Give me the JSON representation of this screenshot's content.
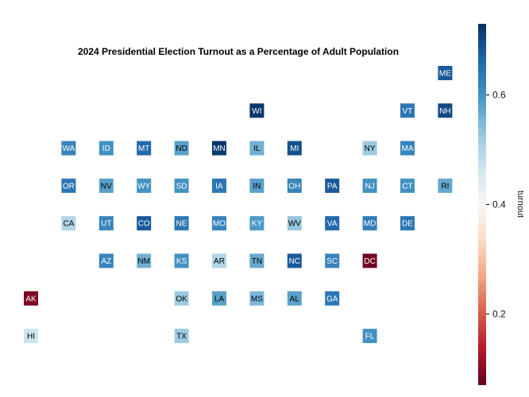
{
  "chart_data": {
    "type": "heatmap",
    "title": "2024 Presidential Election Turnout as a Percentage of Adult Population",
    "colorbar_label": "turnout",
    "colorbar_ticks": [
      0.2,
      0.4,
      0.6
    ],
    "colorbar_tick_labels": [
      "0.2",
      "0.4",
      "0.6"
    ],
    "colorscale": "RdBu",
    "color_range": [
      0.07,
      0.73
    ],
    "grid": false,
    "tiles": [
      {
        "state": "ME",
        "col": 11,
        "row": 0,
        "turnout": 0.68
      },
      {
        "state": "WI",
        "col": 6,
        "row": 1,
        "turnout": 0.72
      },
      {
        "state": "VT",
        "col": 10,
        "row": 1,
        "turnout": 0.64
      },
      {
        "state": "NH",
        "col": 11,
        "row": 1,
        "turnout": 0.7
      },
      {
        "state": "WA",
        "col": 1,
        "row": 2,
        "turnout": 0.62
      },
      {
        "state": "ID",
        "col": 2,
        "row": 2,
        "turnout": 0.6
      },
      {
        "state": "MT",
        "col": 3,
        "row": 2,
        "turnout": 0.66
      },
      {
        "state": "ND",
        "col": 4,
        "row": 2,
        "turnout": 0.58
      },
      {
        "state": "MN",
        "col": 5,
        "row": 2,
        "turnout": 0.72
      },
      {
        "state": "IL",
        "col": 6,
        "row": 2,
        "turnout": 0.56
      },
      {
        "state": "MI",
        "col": 7,
        "row": 2,
        "turnout": 0.69
      },
      {
        "state": "NY",
        "col": 9,
        "row": 2,
        "turnout": 0.52
      },
      {
        "state": "MA",
        "col": 10,
        "row": 2,
        "turnout": 0.62
      },
      {
        "state": "OR",
        "col": 1,
        "row": 3,
        "turnout": 0.64
      },
      {
        "state": "NV",
        "col": 2,
        "row": 3,
        "turnout": 0.58
      },
      {
        "state": "WY",
        "col": 3,
        "row": 3,
        "turnout": 0.6
      },
      {
        "state": "SD",
        "col": 4,
        "row": 3,
        "turnout": 0.6
      },
      {
        "state": "IA",
        "col": 5,
        "row": 3,
        "turnout": 0.64
      },
      {
        "state": "IN",
        "col": 6,
        "row": 3,
        "turnout": 0.58
      },
      {
        "state": "OH",
        "col": 7,
        "row": 3,
        "turnout": 0.62
      },
      {
        "state": "PA",
        "col": 8,
        "row": 3,
        "turnout": 0.68
      },
      {
        "state": "NJ",
        "col": 9,
        "row": 3,
        "turnout": 0.6
      },
      {
        "state": "CT",
        "col": 10,
        "row": 3,
        "turnout": 0.6
      },
      {
        "state": "RI",
        "col": 11,
        "row": 3,
        "turnout": 0.57
      },
      {
        "state": "CA",
        "col": 1,
        "row": 4,
        "turnout": 0.5
      },
      {
        "state": "UT",
        "col": 2,
        "row": 4,
        "turnout": 0.62
      },
      {
        "state": "CO",
        "col": 3,
        "row": 4,
        "turnout": 0.68
      },
      {
        "state": "NE",
        "col": 4,
        "row": 4,
        "turnout": 0.64
      },
      {
        "state": "MO",
        "col": 5,
        "row": 4,
        "turnout": 0.62
      },
      {
        "state": "KY",
        "col": 6,
        "row": 4,
        "turnout": 0.59
      },
      {
        "state": "WV",
        "col": 7,
        "row": 4,
        "turnout": 0.53
      },
      {
        "state": "VA",
        "col": 8,
        "row": 4,
        "turnout": 0.66
      },
      {
        "state": "MD",
        "col": 9,
        "row": 4,
        "turnout": 0.63
      },
      {
        "state": "DE",
        "col": 10,
        "row": 4,
        "turnout": 0.64
      },
      {
        "state": "AZ",
        "col": 2,
        "row": 5,
        "turnout": 0.62
      },
      {
        "state": "NM",
        "col": 3,
        "row": 5,
        "turnout": 0.56
      },
      {
        "state": "KS",
        "col": 4,
        "row": 5,
        "turnout": 0.6
      },
      {
        "state": "AR",
        "col": 5,
        "row": 5,
        "turnout": 0.5
      },
      {
        "state": "TN",
        "col": 6,
        "row": 5,
        "turnout": 0.57
      },
      {
        "state": "NC",
        "col": 7,
        "row": 5,
        "turnout": 0.68
      },
      {
        "state": "SC",
        "col": 8,
        "row": 5,
        "turnout": 0.62
      },
      {
        "state": "DC",
        "col": 9,
        "row": 5,
        "turnout": 0.08
      },
      {
        "state": "AK",
        "col": 0,
        "row": 6,
        "turnout": 0.09
      },
      {
        "state": "OK",
        "col": 4,
        "row": 6,
        "turnout": 0.52
      },
      {
        "state": "LA",
        "col": 5,
        "row": 6,
        "turnout": 0.58
      },
      {
        "state": "MS",
        "col": 6,
        "row": 6,
        "turnout": 0.55
      },
      {
        "state": "AL",
        "col": 7,
        "row": 6,
        "turnout": 0.58
      },
      {
        "state": "GA",
        "col": 8,
        "row": 6,
        "turnout": 0.64
      },
      {
        "state": "HI",
        "col": 0,
        "row": 7,
        "turnout": 0.47
      },
      {
        "state": "TX",
        "col": 4,
        "row": 7,
        "turnout": 0.52
      },
      {
        "state": "FL",
        "col": 9,
        "row": 7,
        "turnout": 0.6
      }
    ]
  }
}
